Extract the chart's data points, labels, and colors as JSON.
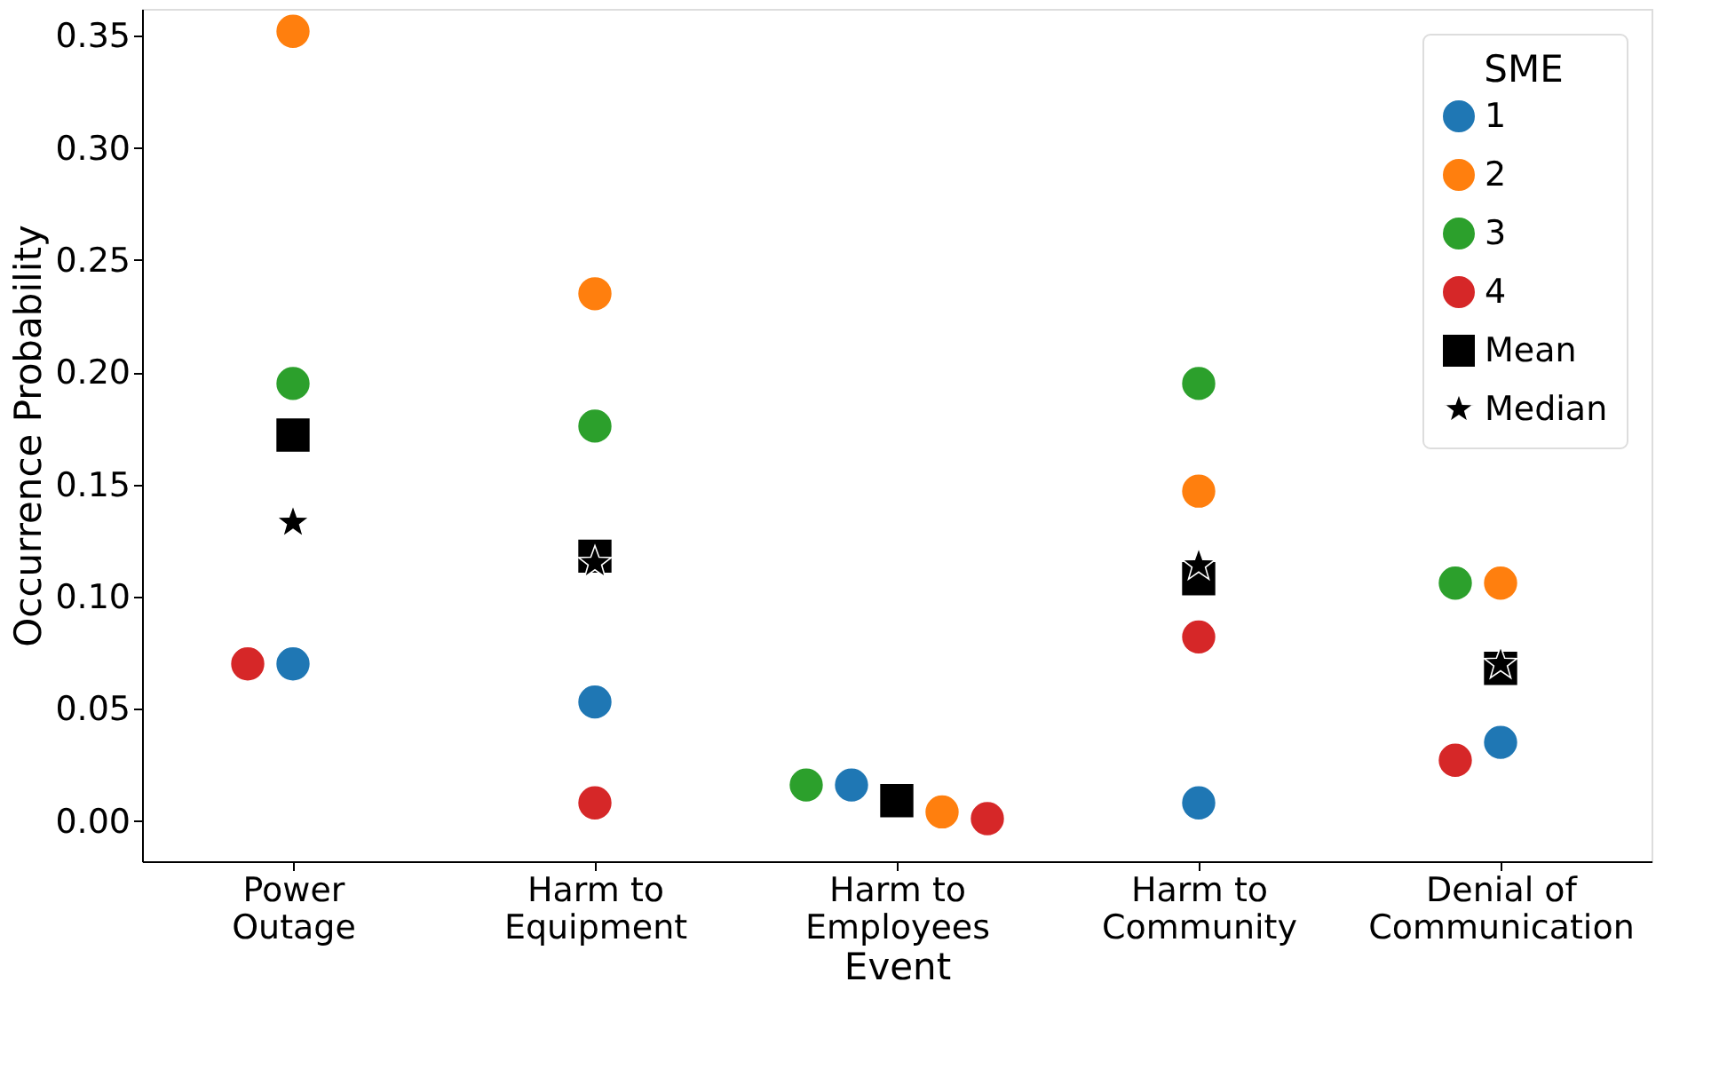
{
  "chart_data": {
    "type": "scatter",
    "xlabel": "Event",
    "ylabel": "Occurrence Probability",
    "legend_title": "SME",
    "categories": [
      "Power Outage",
      "Harm to Equipment",
      "Harm to Employees",
      "Harm to Community",
      "Denial of Communication"
    ],
    "series": [
      {
        "name": "1",
        "color": "#1f77b4",
        "marker": "circle",
        "values": [
          0.07,
          0.053,
          0.016,
          0.008,
          0.035
        ]
      },
      {
        "name": "2",
        "color": "#ff7f0e",
        "marker": "circle",
        "values": [
          0.352,
          0.235,
          0.004,
          0.147,
          0.106
        ]
      },
      {
        "name": "3",
        "color": "#2ca02c",
        "marker": "circle",
        "values": [
          0.195,
          0.176,
          0.016,
          0.195,
          0.106
        ]
      },
      {
        "name": "4",
        "color": "#d62728",
        "marker": "circle",
        "values": [
          0.07,
          0.008,
          0.001,
          0.082,
          0.027
        ]
      },
      {
        "name": "Mean",
        "color": "#000000",
        "marker": "square",
        "values": [
          0.172,
          0.118,
          0.009,
          0.108,
          0.068
        ]
      },
      {
        "name": "Median",
        "color": "#000000",
        "marker": "star",
        "values": [
          0.133,
          0.115,
          null,
          0.114,
          0.07
        ]
      }
    ],
    "ylim": [
      -0.018,
      0.362
    ],
    "yticks": [
      {
        "value": 0,
        "label": "0.00"
      },
      {
        "value": 0.05,
        "label": "0.05"
      },
      {
        "value": 0.1,
        "label": "0.10"
      },
      {
        "value": 0.15,
        "label": "0.15"
      },
      {
        "value": 0.2,
        "label": "0.20"
      },
      {
        "value": 0.25,
        "label": "0.25"
      },
      {
        "value": 0.3,
        "label": "0.30"
      },
      {
        "value": 0.35,
        "label": "0.35"
      }
    ],
    "grid": false,
    "legend": "top right"
  }
}
